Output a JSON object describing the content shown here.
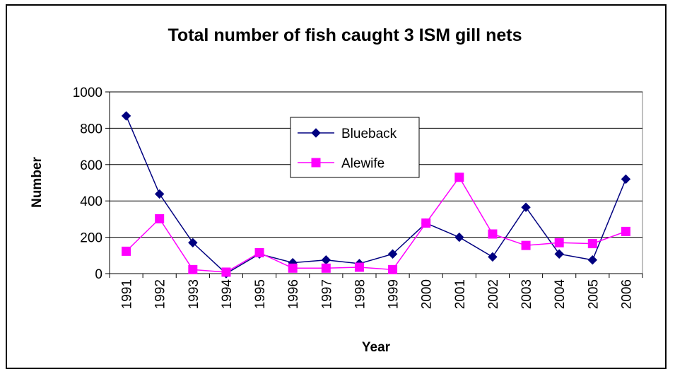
{
  "chart_data": {
    "type": "line",
    "title": "Total number of fish caught 3 ISM gill nets",
    "xlabel": "Year",
    "ylabel": "Number",
    "x": [
      "1991",
      "1992",
      "1993",
      "1994",
      "1995",
      "1996",
      "1997",
      "1998",
      "1999",
      "2000",
      "2001",
      "2002",
      "2003",
      "2004",
      "2005",
      "2006"
    ],
    "ylim": [
      0,
      1000
    ],
    "yticks": [
      0,
      200,
      400,
      600,
      800,
      1000
    ],
    "grid": true,
    "legend": "inside upper-middle",
    "series": [
      {
        "name": "Blueback",
        "color": "#000080",
        "marker": "diamond",
        "values": [
          868,
          438,
          170,
          0,
          108,
          60,
          75,
          55,
          108,
          278,
          200,
          92,
          365,
          108,
          75,
          520
        ]
      },
      {
        "name": "Alewife",
        "color": "#ff00ff",
        "marker": "square",
        "values": [
          123,
          302,
          22,
          8,
          115,
          30,
          30,
          35,
          22,
          278,
          530,
          218,
          155,
          170,
          165,
          232
        ]
      }
    ]
  }
}
